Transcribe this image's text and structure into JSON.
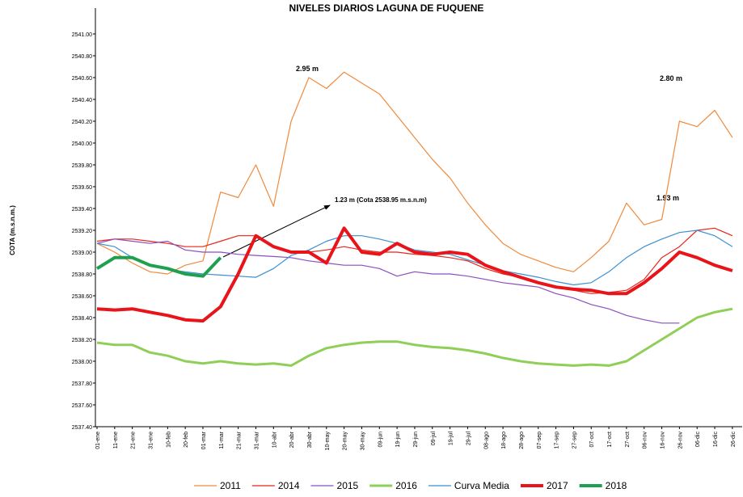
{
  "chart_data": {
    "type": "line",
    "title": "NIVELES DIARIOS LAGUNA DE FUQUENE",
    "y_label": "COTA (m.s.n.m.)",
    "annotations": [
      "2.95 m",
      "2.80 m",
      "1.93 m",
      "1.23 m (Cota 2538.95 m.s.n.m)"
    ],
    "categories": [
      "01-ene",
      "11-ene",
      "21-ene",
      "31-ene",
      "10-feb",
      "20-feb",
      "01-mar",
      "11-mar",
      "21-mar",
      "31-mar",
      "10-abr",
      "20-abr",
      "30-abr",
      "10-may",
      "20-may",
      "30-may",
      "09-jun",
      "19-jun",
      "29-jun",
      "09-jul",
      "19-jul",
      "29-jul",
      "08-ago",
      "18-ago",
      "28-ago",
      "07-sep",
      "17-sep",
      "27-sep",
      "07-oct",
      "17-oct",
      "27-oct",
      "06-nov",
      "16-nov",
      "26-nov",
      "06-dic",
      "16-dic",
      "26-dic"
    ],
    "ylim": [
      2537.4,
      2541.2
    ],
    "yticks": [
      {
        "value": 2537.4,
        "label": "2537.40"
      },
      {
        "value": 2537.6,
        "label": "2537.60"
      },
      {
        "value": 2537.8,
        "label": "2537.80"
      },
      {
        "value": 2538.0,
        "label": "2538.00"
      },
      {
        "value": 2538.2,
        "label": "2538.20"
      },
      {
        "value": 2538.4,
        "label": "2538.40"
      },
      {
        "value": 2538.6,
        "label": "2538.60"
      },
      {
        "value": 2538.8,
        "label": "2538.80"
      },
      {
        "value": 2539.0,
        "label": "2539.00"
      },
      {
        "value": 2539.2,
        "label": "2539.20"
      },
      {
        "value": 2539.4,
        "label": "2539.40"
      },
      {
        "value": 2539.6,
        "label": "2539.60"
      },
      {
        "value": 2539.8,
        "label": "2539.80"
      },
      {
        "value": 2540.0,
        "label": "2540.00"
      },
      {
        "value": 2540.2,
        "label": "2540.20"
      },
      {
        "value": 2540.4,
        "label": "2540.40"
      },
      {
        "value": 2540.6,
        "label": "2540.60"
      },
      {
        "value": 2540.8,
        "label": "2540.80"
      },
      {
        "value": 2541.0,
        "label": "2541.00"
      }
    ],
    "grid": false,
    "legend": "bottom",
    "series": [
      {
        "name": "2011",
        "color": "#f08a3c",
        "line_width": 1.2,
        "values": [
          2539.08,
          2539.0,
          2538.9,
          2538.82,
          2538.8,
          2538.88,
          2538.92,
          2539.55,
          2539.5,
          2539.8,
          2539.42,
          2540.2,
          2540.6,
          2540.5,
          2540.65,
          2540.55,
          2540.45,
          2540.25,
          2540.05,
          2539.85,
          2539.68,
          2539.45,
          2539.25,
          2539.08,
          2538.98,
          2538.92,
          2538.86,
          2538.82,
          2538.95,
          2539.1,
          2539.45,
          2539.25,
          2539.3,
          2540.2,
          2540.15,
          2540.3,
          2540.05
        ]
      },
      {
        "name": "2014",
        "color": "#e8261c",
        "line_width": 1.2,
        "values": [
          2539.1,
          2539.12,
          2539.12,
          2539.1,
          2539.08,
          2539.05,
          2539.05,
          2539.1,
          2539.15,
          2539.15,
          2539.05,
          2539.0,
          2539.0,
          2539.02,
          2539.05,
          2539.02,
          2539.0,
          2539.0,
          2538.98,
          2538.97,
          2538.95,
          2538.92,
          2538.85,
          2538.8,
          2538.77,
          2538.72,
          2538.68,
          2538.65,
          2538.62,
          2538.63,
          2538.65,
          2538.75,
          2538.95,
          2539.05,
          2539.2,
          2539.22,
          2539.15
        ]
      },
      {
        "name": "2015",
        "color": "#8a4fbf",
        "line_width": 1.2,
        "values": [
          2539.08,
          2539.12,
          2539.1,
          2539.08,
          2539.1,
          2539.02,
          2539.0,
          2539.0,
          2538.98,
          2538.97,
          2538.96,
          2538.95,
          2538.92,
          2538.9,
          2538.88,
          2538.88,
          2538.85,
          2538.78,
          2538.82,
          2538.8,
          2538.8,
          2538.78,
          2538.75,
          2538.72,
          2538.7,
          2538.68,
          2538.62,
          2538.58,
          2538.52,
          2538.48,
          2538.42,
          2538.38,
          2538.35,
          2538.35,
          null,
          null,
          null
        ]
      },
      {
        "name": "2016",
        "color": "#8fcf58",
        "line_width": 3,
        "values": [
          2538.17,
          2538.15,
          2538.15,
          2538.08,
          2538.05,
          2538.0,
          2537.98,
          2538.0,
          2537.98,
          2537.97,
          2537.98,
          2537.96,
          2538.05,
          2538.12,
          2538.15,
          2538.17,
          2538.18,
          2538.18,
          2538.15,
          2538.13,
          2538.12,
          2538.1,
          2538.07,
          2538.03,
          2538.0,
          2537.98,
          2537.97,
          2537.96,
          2537.97,
          2537.96,
          2538.0,
          2538.1,
          2538.2,
          2538.3,
          2538.4,
          2538.45,
          2538.48
        ]
      },
      {
        "name": "Curva Media",
        "color": "#3c8fd0",
        "line_width": 1.2,
        "values": [
          2539.08,
          2539.05,
          2538.95,
          2538.88,
          2538.84,
          2538.82,
          2538.8,
          2538.79,
          2538.78,
          2538.77,
          2538.85,
          2538.97,
          2539.02,
          2539.1,
          2539.15,
          2539.15,
          2539.12,
          2539.08,
          2539.02,
          2539.0,
          2538.98,
          2538.93,
          2538.88,
          2538.83,
          2538.8,
          2538.77,
          2538.73,
          2538.7,
          2538.72,
          2538.82,
          2538.95,
          2539.05,
          2539.12,
          2539.18,
          2539.2,
          2539.15,
          2539.05
        ]
      },
      {
        "name": "2017",
        "color": "#e8141a",
        "line_width": 4,
        "values": [
          2538.48,
          2538.47,
          2538.48,
          2538.45,
          2538.42,
          2538.38,
          2538.37,
          2538.5,
          2538.8,
          2539.15,
          2539.05,
          2539.0,
          2539.0,
          2538.9,
          2539.22,
          2539.0,
          2538.98,
          2539.08,
          2539.0,
          2538.98,
          2539.0,
          2538.98,
          2538.88,
          2538.82,
          2538.77,
          2538.72,
          2538.68,
          2538.66,
          2538.65,
          2538.62,
          2538.62,
          2538.72,
          2538.85,
          2539.0,
          2538.95,
          2538.88,
          2538.83
        ]
      },
      {
        "name": "2018",
        "color": "#1fa050",
        "line_width": 4,
        "values": [
          2538.85,
          2538.95,
          2538.95,
          2538.88,
          2538.85,
          2538.8,
          2538.78,
          2538.95,
          null,
          null,
          null,
          null,
          null,
          null,
          null,
          null,
          null,
          null,
          null,
          null,
          null,
          null,
          null,
          null,
          null,
          null,
          null,
          null,
          null,
          null,
          null,
          null,
          null,
          null,
          null,
          null,
          null
        ]
      }
    ]
  }
}
